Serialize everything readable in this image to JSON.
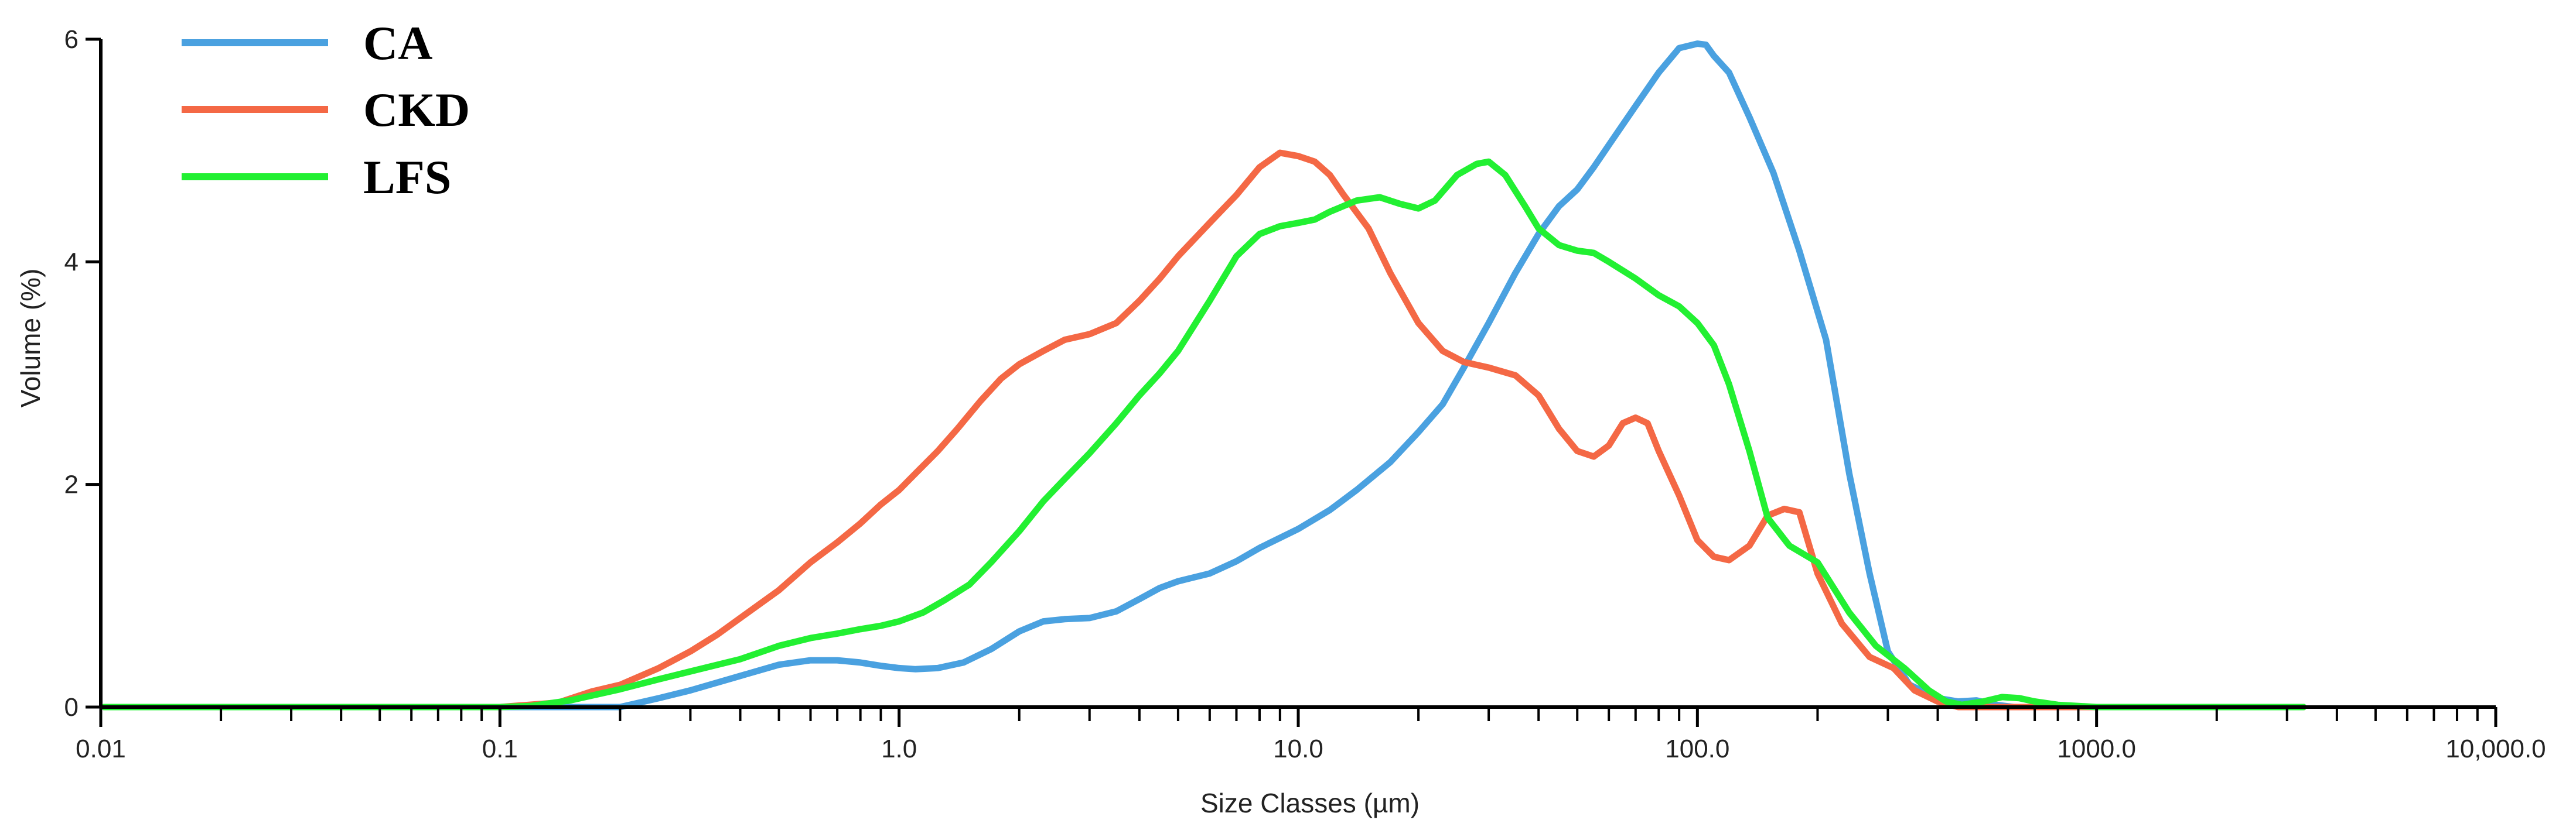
{
  "chart_data": {
    "type": "line",
    "x_scale": "log",
    "xlabel": "Size Classes (µm)",
    "ylabel": "Volume (%)",
    "xlim": [
      0.01,
      10000
    ],
    "ylim": [
      0,
      6
    ],
    "x_ticks": [
      {
        "value": 0.01,
        "label": "0.01"
      },
      {
        "value": 0.1,
        "label": "0.1"
      },
      {
        "value": 1,
        "label": "1.0"
      },
      {
        "value": 10,
        "label": "10.0"
      },
      {
        "value": 100,
        "label": "100.0"
      },
      {
        "value": 1000,
        "label": "1000.0"
      },
      {
        "value": 10000,
        "label": "10,000.0"
      }
    ],
    "y_ticks": [
      {
        "value": 0,
        "label": "0"
      },
      {
        "value": 2,
        "label": "2"
      },
      {
        "value": 4,
        "label": "4"
      },
      {
        "value": 6,
        "label": "6"
      }
    ],
    "legend_position": "top-left",
    "series": [
      {
        "name": "CA",
        "color": "#4aa1e0",
        "points": [
          [
            0.0102,
            0
          ],
          [
            0.1,
            0
          ],
          [
            0.2,
            0
          ],
          [
            0.25,
            0.08
          ],
          [
            0.3,
            0.15
          ],
          [
            0.4,
            0.28
          ],
          [
            0.5,
            0.38
          ],
          [
            0.6,
            0.42
          ],
          [
            0.7,
            0.42
          ],
          [
            0.8,
            0.4
          ],
          [
            0.9,
            0.37
          ],
          [
            1.0,
            0.35
          ],
          [
            1.1,
            0.34
          ],
          [
            1.25,
            0.35
          ],
          [
            1.45,
            0.4
          ],
          [
            1.7,
            0.52
          ],
          [
            2.0,
            0.68
          ],
          [
            2.3,
            0.77
          ],
          [
            2.6,
            0.79
          ],
          [
            3.0,
            0.8
          ],
          [
            3.5,
            0.86
          ],
          [
            4.0,
            0.97
          ],
          [
            4.5,
            1.07
          ],
          [
            5.0,
            1.13
          ],
          [
            6.0,
            1.2
          ],
          [
            7.0,
            1.31
          ],
          [
            8.0,
            1.43
          ],
          [
            10.0,
            1.6
          ],
          [
            12.0,
            1.77
          ],
          [
            14.0,
            1.95
          ],
          [
            17.0,
            2.2
          ],
          [
            20.0,
            2.47
          ],
          [
            23.0,
            2.72
          ],
          [
            26.0,
            3.05
          ],
          [
            30.0,
            3.45
          ],
          [
            35.0,
            3.9
          ],
          [
            40.0,
            4.25
          ],
          [
            45.0,
            4.5
          ],
          [
            50.0,
            4.65
          ],
          [
            55.0,
            4.85
          ],
          [
            60.0,
            5.05
          ],
          [
            70.0,
            5.4
          ],
          [
            80.0,
            5.7
          ],
          [
            90.0,
            5.92
          ],
          [
            100.0,
            5.96
          ],
          [
            105.0,
            5.95
          ],
          [
            110.0,
            5.85
          ],
          [
            120.0,
            5.7
          ],
          [
            135.0,
            5.3
          ],
          [
            155.0,
            4.8
          ],
          [
            180.0,
            4.1
          ],
          [
            210.0,
            3.3
          ],
          [
            240.0,
            2.1
          ],
          [
            270.0,
            1.2
          ],
          [
            300.0,
            0.5
          ],
          [
            340.0,
            0.2
          ],
          [
            400.0,
            0.08
          ],
          [
            450.0,
            0.05
          ],
          [
            500.0,
            0.06
          ],
          [
            560.0,
            0.02
          ],
          [
            620.0,
            0
          ]
        ]
      },
      {
        "name": "CKD",
        "color": "#f46845",
        "points": [
          [
            0.0102,
            0
          ],
          [
            0.1,
            0
          ],
          [
            0.14,
            0.04
          ],
          [
            0.17,
            0.14
          ],
          [
            0.2,
            0.2
          ],
          [
            0.25,
            0.35
          ],
          [
            0.3,
            0.5
          ],
          [
            0.35,
            0.65
          ],
          [
            0.4,
            0.8
          ],
          [
            0.5,
            1.05
          ],
          [
            0.6,
            1.3
          ],
          [
            0.7,
            1.48
          ],
          [
            0.8,
            1.65
          ],
          [
            0.9,
            1.82
          ],
          [
            1.0,
            1.95
          ],
          [
            1.1,
            2.1
          ],
          [
            1.25,
            2.3
          ],
          [
            1.4,
            2.5
          ],
          [
            1.6,
            2.75
          ],
          [
            1.8,
            2.95
          ],
          [
            2.0,
            3.08
          ],
          [
            2.3,
            3.2
          ],
          [
            2.6,
            3.3
          ],
          [
            3.0,
            3.35
          ],
          [
            3.5,
            3.45
          ],
          [
            4.0,
            3.65
          ],
          [
            4.5,
            3.85
          ],
          [
            5.0,
            4.05
          ],
          [
            6.0,
            4.35
          ],
          [
            7.0,
            4.6
          ],
          [
            8.0,
            4.85
          ],
          [
            9.0,
            4.98
          ],
          [
            10.0,
            4.95
          ],
          [
            11.0,
            4.9
          ],
          [
            12.0,
            4.78
          ],
          [
            13.0,
            4.6
          ],
          [
            15.0,
            4.3
          ],
          [
            17.0,
            3.9
          ],
          [
            20.0,
            3.45
          ],
          [
            23.0,
            3.2
          ],
          [
            26.0,
            3.1
          ],
          [
            30.0,
            3.05
          ],
          [
            35.0,
            2.98
          ],
          [
            40.0,
            2.8
          ],
          [
            45.0,
            2.5
          ],
          [
            50.0,
            2.3
          ],
          [
            55.0,
            2.25
          ],
          [
            60.0,
            2.35
          ],
          [
            65.0,
            2.55
          ],
          [
            70.0,
            2.6
          ],
          [
            75.0,
            2.55
          ],
          [
            80.0,
            2.3
          ],
          [
            90.0,
            1.9
          ],
          [
            100.0,
            1.5
          ],
          [
            110.0,
            1.35
          ],
          [
            120.0,
            1.32
          ],
          [
            135.0,
            1.45
          ],
          [
            150.0,
            1.72
          ],
          [
            165.0,
            1.78
          ],
          [
            180.0,
            1.75
          ],
          [
            200.0,
            1.2
          ],
          [
            230.0,
            0.75
          ],
          [
            270.0,
            0.45
          ],
          [
            310.0,
            0.35
          ],
          [
            350.0,
            0.15
          ],
          [
            400.0,
            0.05
          ],
          [
            450.0,
            0
          ],
          [
            3300.0,
            0
          ]
        ]
      },
      {
        "name": "LFS",
        "color": "#22f032",
        "points": [
          [
            0.0102,
            0
          ],
          [
            0.1,
            0
          ],
          [
            0.12,
            0.01
          ],
          [
            0.15,
            0.06
          ],
          [
            0.2,
            0.16
          ],
          [
            0.25,
            0.25
          ],
          [
            0.3,
            0.32
          ],
          [
            0.4,
            0.43
          ],
          [
            0.5,
            0.55
          ],
          [
            0.6,
            0.62
          ],
          [
            0.7,
            0.66
          ],
          [
            0.8,
            0.7
          ],
          [
            0.9,
            0.73
          ],
          [
            1.0,
            0.77
          ],
          [
            1.15,
            0.85
          ],
          [
            1.3,
            0.96
          ],
          [
            1.5,
            1.1
          ],
          [
            1.7,
            1.3
          ],
          [
            2.0,
            1.58
          ],
          [
            2.3,
            1.85
          ],
          [
            2.6,
            2.05
          ],
          [
            3.0,
            2.28
          ],
          [
            3.5,
            2.55
          ],
          [
            4.0,
            2.8
          ],
          [
            4.5,
            3.0
          ],
          [
            5.0,
            3.2
          ],
          [
            6.0,
            3.65
          ],
          [
            7.0,
            4.05
          ],
          [
            8.0,
            4.25
          ],
          [
            9.0,
            4.32
          ],
          [
            10.0,
            4.35
          ],
          [
            11.0,
            4.38
          ],
          [
            12.0,
            4.45
          ],
          [
            14.0,
            4.55
          ],
          [
            16.0,
            4.58
          ],
          [
            18.0,
            4.52
          ],
          [
            20.0,
            4.48
          ],
          [
            22.0,
            4.55
          ],
          [
            25.0,
            4.78
          ],
          [
            28.0,
            4.88
          ],
          [
            30.0,
            4.9
          ],
          [
            33.0,
            4.78
          ],
          [
            37.0,
            4.5
          ],
          [
            40.0,
            4.3
          ],
          [
            45.0,
            4.15
          ],
          [
            50.0,
            4.1
          ],
          [
            55.0,
            4.08
          ],
          [
            60.0,
            4.0
          ],
          [
            70.0,
            3.85
          ],
          [
            80.0,
            3.7
          ],
          [
            90.0,
            3.6
          ],
          [
            100.0,
            3.45
          ],
          [
            110.0,
            3.25
          ],
          [
            120.0,
            2.9
          ],
          [
            135.0,
            2.3
          ],
          [
            150.0,
            1.7
          ],
          [
            170.0,
            1.45
          ],
          [
            200.0,
            1.3
          ],
          [
            240.0,
            0.85
          ],
          [
            280.0,
            0.55
          ],
          [
            330.0,
            0.35
          ],
          [
            380.0,
            0.15
          ],
          [
            420.0,
            0.05
          ],
          [
            460.0,
            0.02
          ],
          [
            520.0,
            0.05
          ],
          [
            580.0,
            0.09
          ],
          [
            640.0,
            0.08
          ],
          [
            700.0,
            0.05
          ],
          [
            800.0,
            0.02
          ],
          [
            1000.0,
            0
          ],
          [
            3300.0,
            0
          ]
        ]
      }
    ]
  }
}
